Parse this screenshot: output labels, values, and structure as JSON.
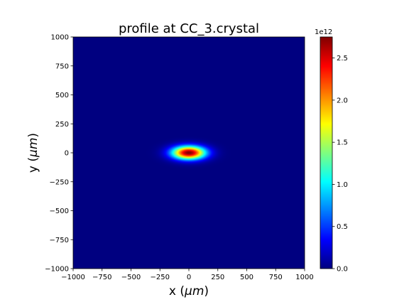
{
  "chart_data": {
    "type": "heatmap",
    "title": "profile at CC_3.crystal",
    "xlabel_pre": "x (",
    "xlabel_unit": "μm",
    "xlabel_post": ")",
    "ylabel_pre": "y (",
    "ylabel_unit": "μm",
    "ylabel_post": ")",
    "xlim": [
      -1000,
      1000
    ],
    "ylim": [
      -1000,
      1000
    ],
    "x_ticks": [
      -1000,
      -750,
      -500,
      -250,
      0,
      250,
      500,
      750,
      1000
    ],
    "x_tick_labels": [
      "−1000",
      "−750",
      "−500",
      "−250",
      "0",
      "250",
      "500",
      "750",
      "1000"
    ],
    "y_ticks": [
      1000,
      750,
      500,
      250,
      0,
      -250,
      -500,
      -750,
      -1000
    ],
    "y_tick_labels": [
      "1000",
      "750",
      "500",
      "250",
      "0",
      "−250",
      "−500",
      "−750",
      "−1000"
    ],
    "colormap": "jet",
    "beam": {
      "center_x": 0,
      "center_y": 0,
      "sigma_x": 100,
      "sigma_y": 40,
      "peak": 2750000000000.0
    },
    "colorbar": {
      "min": 0,
      "max": 2750000000000.0,
      "multiplier_label": "1e12",
      "ticks": [
        0.0,
        0.5,
        1.0,
        1.5,
        2.0,
        2.5
      ],
      "tick_labels": [
        "0.0",
        "0.5",
        "1.0",
        "1.5",
        "2.0",
        "2.5"
      ]
    }
  }
}
